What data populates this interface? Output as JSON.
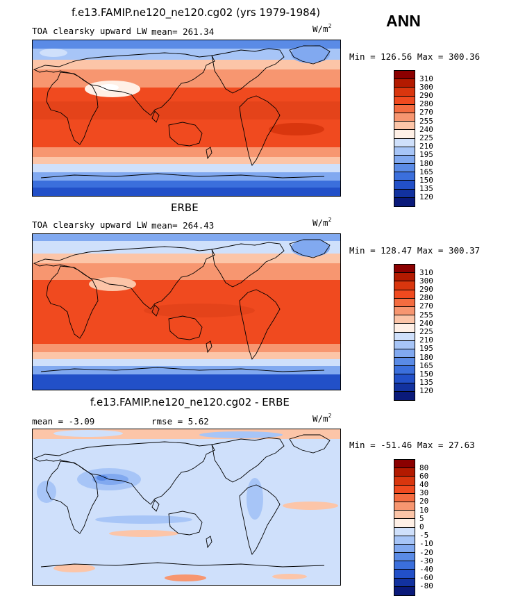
{
  "season": "ANN",
  "panels": [
    {
      "title": "f.e13.FAMIP.ne120_ne120.cg02 (yrs 1979-1984)",
      "left_label": "TOA clearsky upward LW",
      "stat_label": "mean= 261.34",
      "units_base": "W/m",
      "units_exp": "2",
      "minmax": "Min = 126.56 Max = 300.36",
      "colorbar": {
        "colors": [
          "#8b0000",
          "#b31a00",
          "#d9360e",
          "#f04a1f",
          "#f46c40",
          "#f79670",
          "#fcc5a8",
          "#fff0e6",
          "#cfe0fb",
          "#a7c5f7",
          "#81a9f0",
          "#5a8be6",
          "#3b6fdc",
          "#2250c8",
          "#12329f",
          "#0a1a7a"
        ],
        "ticks": [
          "310",
          "300",
          "290",
          "280",
          "270",
          "255",
          "240",
          "225",
          "210",
          "195",
          "180",
          "165",
          "150",
          "135",
          "120"
        ]
      }
    },
    {
      "title": "ERBE",
      "left_label": "TOA clearsky upward LW",
      "stat_label": "mean= 264.43",
      "units_base": "W/m",
      "units_exp": "2",
      "minmax": "Min = 128.47 Max = 300.37",
      "colorbar": {
        "colors": [
          "#8b0000",
          "#b31a00",
          "#d9360e",
          "#f04a1f",
          "#f46c40",
          "#f79670",
          "#fcc5a8",
          "#fff0e6",
          "#cfe0fb",
          "#a7c5f7",
          "#81a9f0",
          "#5a8be6",
          "#3b6fdc",
          "#2250c8",
          "#12329f",
          "#0a1a7a"
        ],
        "ticks": [
          "310",
          "300",
          "290",
          "280",
          "270",
          "255",
          "240",
          "225",
          "210",
          "195",
          "180",
          "165",
          "150",
          "135",
          "120"
        ]
      }
    },
    {
      "title": "f.e13.FAMIP.ne120_ne120.cg02 - ERBE",
      "left_label": "mean =   -3.09",
      "stat_label": "rmse =    5.62",
      "units_base": "W/m",
      "units_exp": "2",
      "minmax": "Min = -51.46 Max = 27.63",
      "colorbar": {
        "colors": [
          "#8b0000",
          "#b31a00",
          "#d9360e",
          "#f04a1f",
          "#f46c40",
          "#f79670",
          "#fcc5a8",
          "#fff0e6",
          "#cfe0fb",
          "#a7c5f7",
          "#81a9f0",
          "#5a8be6",
          "#3b6fdc",
          "#2250c8",
          "#12329f",
          "#0a1a7a"
        ],
        "ticks": [
          "80",
          "60",
          "40",
          "30",
          "20",
          "10",
          "5",
          "0",
          "-5",
          "-10",
          "-20",
          "-30",
          "-40",
          "-60",
          "-80"
        ]
      }
    }
  ]
}
